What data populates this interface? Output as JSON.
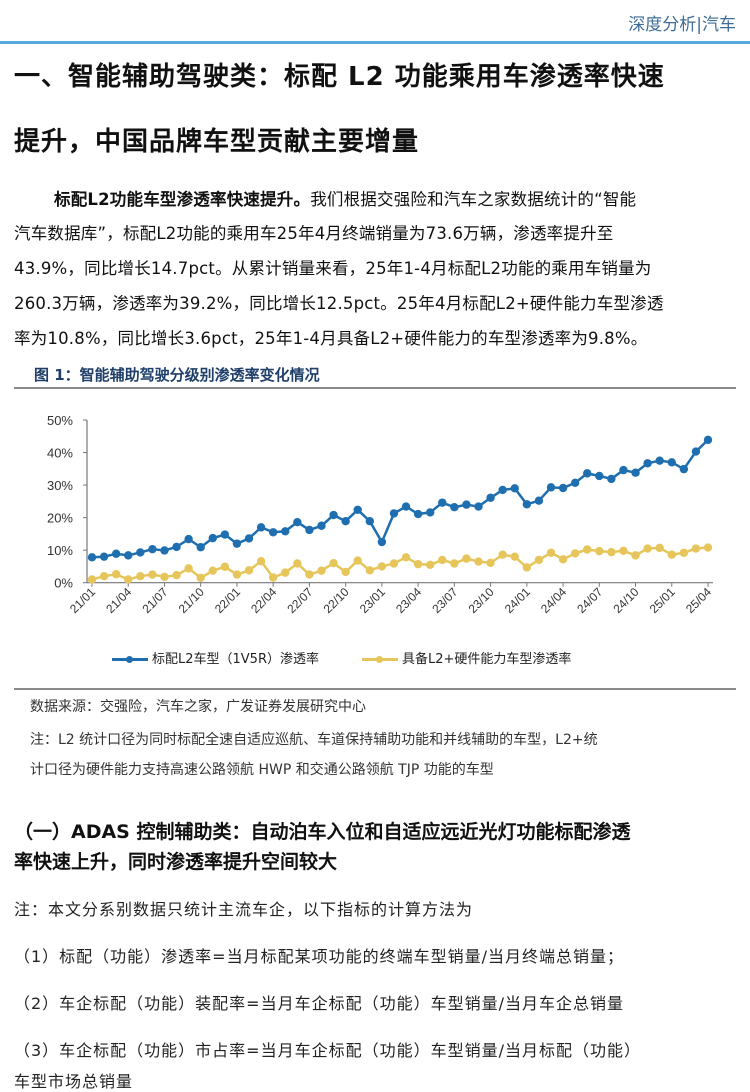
{
  "header": {
    "label": "深度分析|汽车",
    "accent": "#56a9da"
  },
  "section_title": {
    "line1": "一、智能辅助驾驶类：标配 L2 功能乘用车渗透率快速",
    "line2": "提升，中国品牌车型贡献主要增量"
  },
  "paragraph": {
    "lead": "标配L2功能车型渗透率快速提升。",
    "lines": [
      "我们根据交强险和汽车之家数据统计的“智能",
      "汽车数据库”，标配L2功能的乘用车25年4月终端销量为73.6万辆，渗透率提升至",
      "43.9%，同比增长14.7pct。从累计销量来看，25年1-4月标配L2功能的乘用车销量为",
      "260.3万辆，渗透率为39.2%，同比增长12.5pct。25年4月标配L2+硬件能力车型渗透",
      "率为10.8%，同比增长3.6pct，25年1-4月具备L2+硬件能力的车型渗透率为9.8%。"
    ]
  },
  "figure": {
    "title": "图 1：智能辅助驾驶分级别渗透率变化情况",
    "source": "数据来源：交强险，汽车之家，广发证券发展研究中心",
    "note_line1": "注：L2 统计口径为同时标配全速自适应巡航、车道保持辅助功能和并线辅助的车型，L2+统",
    "note_line2": "计口径为硬件能力支持高速公路领航 HWP 和交通公路领航 TJP 功能的车型"
  },
  "chart_data": {
    "type": "line",
    "title": "",
    "xlabel": "",
    "ylabel": "",
    "ylim": [
      0,
      50
    ],
    "y_ticks": [
      "0%",
      "10%",
      "20%",
      "30%",
      "40%",
      "50%"
    ],
    "x_tick_labels": [
      "21/01",
      "21/04",
      "21/07",
      "21/10",
      "22/01",
      "22/04",
      "22/07",
      "22/10",
      "23/01",
      "23/04",
      "23/07",
      "23/10",
      "24/01",
      "24/04",
      "24/07",
      "24/10",
      "25/01",
      "25/04"
    ],
    "x": [
      "21/01",
      "21/02",
      "21/03",
      "21/04",
      "21/05",
      "21/06",
      "21/07",
      "21/08",
      "21/09",
      "21/10",
      "21/11",
      "21/12",
      "22/01",
      "22/02",
      "22/03",
      "22/04",
      "22/05",
      "22/06",
      "22/07",
      "22/08",
      "22/09",
      "22/10",
      "22/11",
      "22/12",
      "23/01",
      "23/02",
      "23/03",
      "23/04",
      "23/05",
      "23/06",
      "23/07",
      "23/08",
      "23/09",
      "23/10",
      "23/11",
      "23/12",
      "24/01",
      "24/02",
      "24/03",
      "24/04",
      "24/05",
      "24/06",
      "24/07",
      "24/08",
      "24/09",
      "24/10",
      "24/11",
      "24/12",
      "25/01",
      "25/02",
      "25/03",
      "25/04"
    ],
    "grid": false,
    "legend_position": "bottom",
    "series": [
      {
        "name": "标配L2车型（1V5R）渗透率",
        "color": "#1f6fb0",
        "values": [
          7.8,
          8.0,
          8.9,
          8.4,
          9.3,
          10.3,
          9.9,
          11.0,
          13.4,
          10.9,
          13.7,
          14.8,
          12.0,
          13.6,
          17.0,
          15.5,
          15.8,
          18.6,
          16.2,
          17.5,
          20.8,
          18.9,
          22.4,
          18.9,
          12.5,
          21.3,
          23.4,
          21.1,
          21.6,
          24.6,
          23.2,
          24.0,
          23.4,
          26.1,
          28.5,
          29.0,
          24.1,
          25.2,
          29.3,
          29.1,
          30.7,
          33.6,
          32.8,
          31.9,
          34.6,
          33.8,
          36.7,
          37.5,
          37.0,
          34.9,
          40.3,
          43.9
        ]
      },
      {
        "name": "具备L2+硬件能力车型渗透率",
        "color": "#e6c65a",
        "values": [
          1.0,
          2.0,
          2.6,
          1.0,
          2.0,
          2.5,
          1.8,
          2.3,
          4.4,
          1.5,
          3.7,
          4.9,
          2.5,
          3.8,
          6.6,
          1.6,
          3.1,
          5.9,
          2.5,
          3.7,
          6.0,
          3.3,
          6.8,
          3.8,
          5.0,
          5.9,
          7.8,
          5.7,
          5.5,
          7.0,
          5.9,
          7.4,
          6.5,
          6.1,
          8.6,
          8.0,
          4.7,
          7.0,
          9.2,
          7.2,
          9.0,
          10.2,
          9.7,
          9.4,
          9.8,
          8.4,
          10.5,
          10.7,
          8.6,
          9.2,
          10.5,
          10.8
        ]
      }
    ]
  },
  "subsection": {
    "line1": "（一）ADAS 控制辅助类：自动泊车入位和自适应远近光灯功能标配渗透",
    "line2": "率快速上升，同时渗透率提升空间较大"
  },
  "notes": [
    "注：本文分系别数据只统计主流车企，以下指标的计算方法为",
    "（1）标配（功能）渗透率=当月标配某项功能的终端车型销量/当月终端总销量；",
    "（2）车企标配（功能）装配率=当月车企标配（功能）车型销量/当月车企总销量",
    "（3）车企标配（功能）市占率=当月车企标配（功能）车型销量/当月标配（功能）",
    "车型市场总销量"
  ]
}
